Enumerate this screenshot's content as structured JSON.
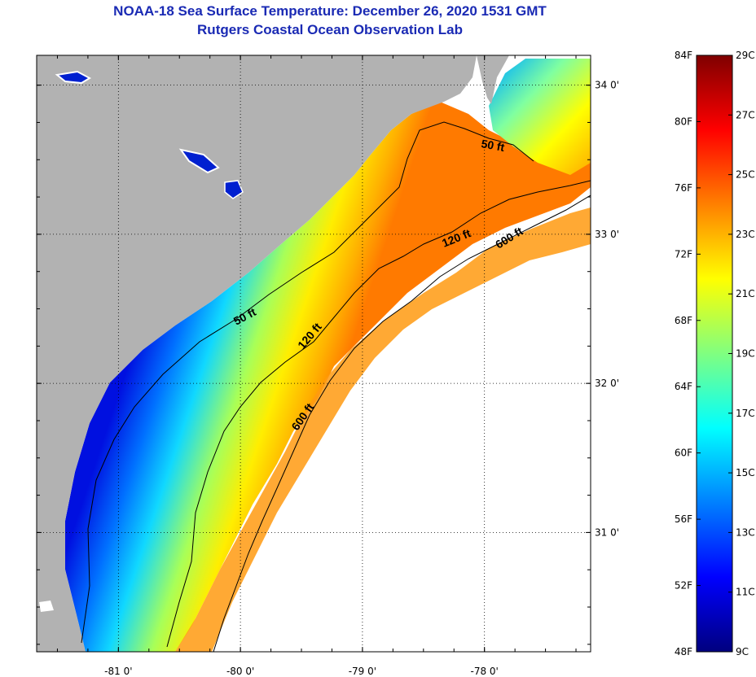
{
  "title_line1": "NOAA-18 Sea Surface Temperature:  December 26, 2020 1531 GMT",
  "title_line2": "Rutgers Coastal Ocean Observation Lab",
  "map": {
    "lat_ticks": [
      {
        "value": 34.0,
        "label": "34 0'"
      },
      {
        "value": 33.0,
        "label": "33 0'"
      },
      {
        "value": 32.0,
        "label": "32 0'"
      },
      {
        "value": 31.0,
        "label": "31 0'"
      }
    ],
    "lon_ticks": [
      {
        "value": -81.0,
        "label": "-81 0'"
      },
      {
        "value": -80.0,
        "label": "-80 0'"
      },
      {
        "value": -79.0,
        "label": "-79 0'"
      },
      {
        "value": -78.0,
        "label": "-78 0'"
      }
    ],
    "lat_range": [
      30.2,
      34.2
    ],
    "lon_range": [
      -81.67,
      -77.13
    ],
    "contour_labels": [
      "50 ft",
      "50 ft",
      "120 ft",
      "120 ft",
      "600 ft",
      "600 ft"
    ],
    "colors": {
      "land": "#b2b2b2",
      "cloud": "#ffffff",
      "contour": "#000000"
    }
  },
  "colorbar": {
    "f_labels": [
      "84F",
      "80F",
      "76F",
      "72F",
      "68F",
      "64F",
      "60F",
      "56F",
      "52F",
      "48F"
    ],
    "c_labels": [
      "29C",
      "27C",
      "25C",
      "23C",
      "21C",
      "19C",
      "17C",
      "15C",
      "13C",
      "11C",
      "9C"
    ],
    "f_range": [
      48,
      84
    ],
    "c_range": [
      9,
      29
    ],
    "stops": [
      "#00007f",
      "#0000ff",
      "#0080ff",
      "#00ffff",
      "#80ff80",
      "#ffff00",
      "#ff8000",
      "#ff0000",
      "#7f0000"
    ]
  }
}
